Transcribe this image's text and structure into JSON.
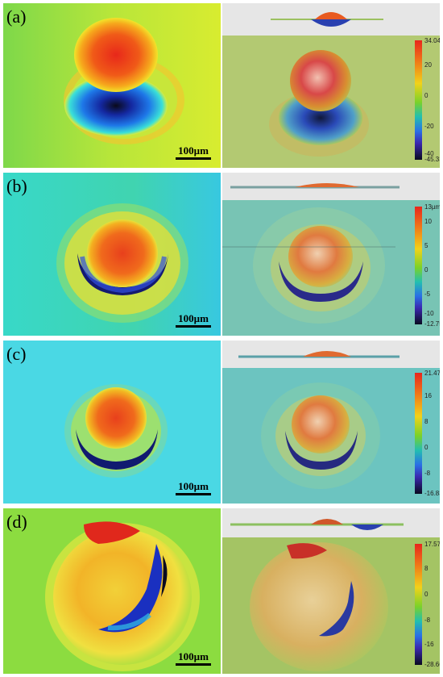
{
  "panels": [
    {
      "label": "(a)",
      "scale_label": "100µm",
      "colorbar": {
        "max": "34.046µm",
        "ticks": [
          "20",
          "0",
          "-20",
          "-40"
        ],
        "min": "-45.337"
      }
    },
    {
      "label": "(b)",
      "scale_label": "100µm",
      "colorbar": {
        "max": "13µm",
        "ticks": [
          "10",
          "5",
          "0",
          "-5",
          "-10"
        ],
        "min": "-12.754"
      }
    },
    {
      "label": "(c)",
      "scale_label": "100µm",
      "colorbar": {
        "max": "21.472µm",
        "ticks": [
          "16",
          "8",
          "0",
          "-8"
        ],
        "min": "-16.831"
      }
    },
    {
      "label": "(d)",
      "scale_label": "100µm",
      "colorbar": {
        "max": "17.573µm",
        "ticks": [
          "8",
          "0",
          "-8",
          "-16"
        ],
        "min": "-28.662"
      }
    }
  ]
}
